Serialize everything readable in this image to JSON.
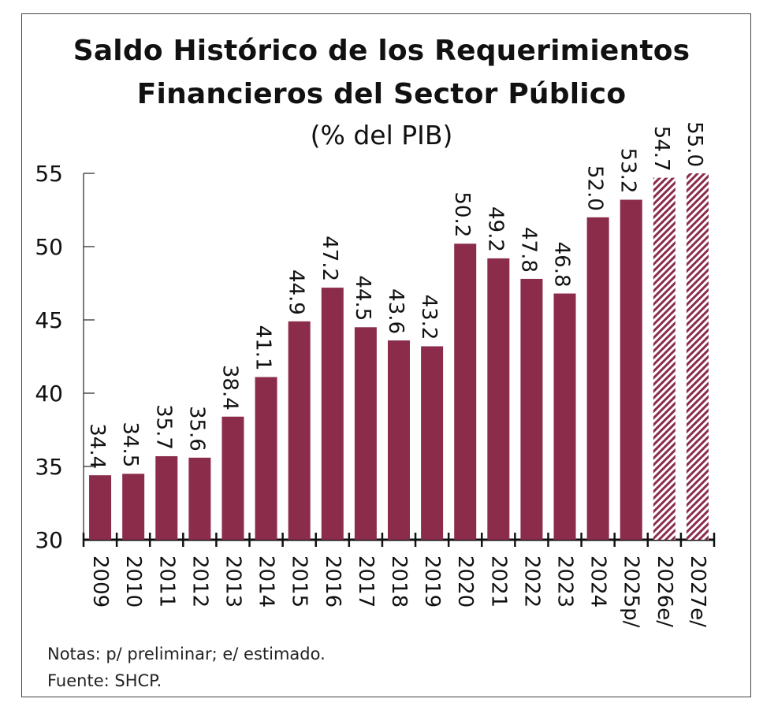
{
  "chart_data": {
    "type": "bar",
    "title_line1": "Saldo Histórico de los Requerimientos",
    "title_line2": "Financieros del Sector Público",
    "subtitle": "(% del PIB)",
    "categories": [
      "2009",
      "2010",
      "2011",
      "2012",
      "2013",
      "2014",
      "2015",
      "2016",
      "2017",
      "2018",
      "2019",
      "2020",
      "2021",
      "2022",
      "2023",
      "2024",
      "2025p/",
      "2026e/",
      "2027e/"
    ],
    "values": [
      34.4,
      34.5,
      35.7,
      35.6,
      38.4,
      41.1,
      44.9,
      47.2,
      44.5,
      43.6,
      43.2,
      50.2,
      49.2,
      47.8,
      46.8,
      52.0,
      53.2,
      54.7,
      55.0
    ],
    "value_labels": [
      "34.4",
      "34.5",
      "35.7",
      "35.6",
      "38.4",
      "41.1",
      "44.9",
      "47.2",
      "44.5",
      "43.6",
      "43.2",
      "50.2",
      "49.2",
      "47.8",
      "46.8",
      "52.0",
      "53.2",
      "54.7",
      "55.0"
    ],
    "estimated": [
      false,
      false,
      false,
      false,
      false,
      false,
      false,
      false,
      false,
      false,
      false,
      false,
      false,
      false,
      false,
      false,
      false,
      true,
      true
    ],
    "ylim": [
      30,
      55
    ],
    "yticks": [
      30,
      35,
      40,
      45,
      50,
      55
    ],
    "bar_color": "#8b2c4b",
    "grid": false,
    "legend": "none"
  },
  "notes": {
    "line1": "Notas: p/ preliminar; e/ estimado.",
    "line2": "Fuente: SHCP."
  }
}
